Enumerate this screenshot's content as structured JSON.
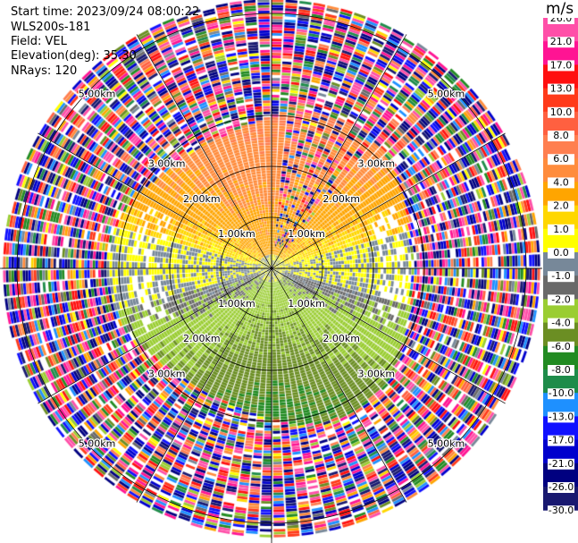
{
  "header": {
    "start_time": "Start time: 2023/09/24 08:00:22",
    "instrument": "WLS200s-181",
    "field": "Field: VEL",
    "elevation": "Elevation(deg): 35.30",
    "nrays": "NRays: 120"
  },
  "colorbar": {
    "unit": "m/s",
    "tick_labels": [
      "26.0",
      "21.0",
      "17.0",
      "13.0",
      "10.0",
      "8.0",
      "6.0",
      "4.0",
      "2.0",
      "1.0",
      "0.0",
      "-1.0",
      "-2.0",
      "-4.0",
      "-6.0",
      "-8.0",
      "-10.0",
      "-13.0",
      "-17.0",
      "-21.0",
      "-26.0",
      "-30.0"
    ],
    "colors": [
      "#ff4fa8",
      "#ff1493",
      "#ff1010",
      "#ff3a1a",
      "#ff6040",
      "#ff7f50",
      "#ff8c3c",
      "#ffa500",
      "#ffd700",
      "#ffff00",
      "#778899",
      "#696969",
      "#9acd32",
      "#6b8e23",
      "#228b22",
      "#1e8c4a",
      "#1e90ff",
      "#1010ff",
      "#0000cd",
      "#000080",
      "#191970"
    ]
  },
  "chart_data": {
    "type": "heatmap",
    "subtype": "radar PPI (polar)",
    "field": "VEL",
    "units": "m/s",
    "nrays": 120,
    "elevation_deg": 35.3,
    "color_range": [
      -30.0,
      26.0
    ],
    "range_rings_km": [
      1.0,
      2.0,
      3.0,
      5.0
    ],
    "range_ring_labels": [
      "1.00km",
      "2.00km",
      "3.00km",
      "5.00km"
    ],
    "spokes_deg": [
      0,
      30,
      60,
      90,
      120,
      150,
      180,
      210,
      240,
      270,
      300,
      330
    ],
    "pattern_description": "Positive velocities (yellow/orange) in the northern half, negative velocities (green) in the southern half, grey near-zero band, noisy multicolor speckle beyond ~3 km."
  }
}
